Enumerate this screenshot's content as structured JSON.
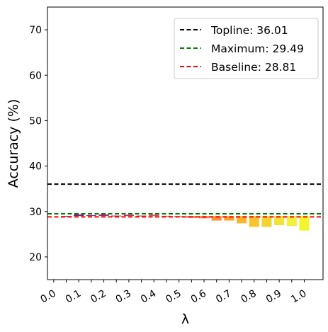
{
  "chart_data": {
    "type": "bar",
    "title": "",
    "xlabel": "λ",
    "ylabel": "Accuracy (%)",
    "xlim": [
      -0.025,
      1.075
    ],
    "ylim": [
      15,
      75
    ],
    "yticks": [
      20,
      30,
      40,
      50,
      60,
      70
    ],
    "xtick_labels": [
      "0.0",
      "0.1",
      "0.2",
      "0.3",
      "0.4",
      "0.5",
      "0.6",
      "0.7",
      "0.8",
      "0.9",
      "1.0"
    ],
    "bar_base": 29.0,
    "x": [
      0.05,
      0.1,
      0.15,
      0.2,
      0.25,
      0.3,
      0.35,
      0.4,
      0.45,
      0.5,
      0.55,
      0.6,
      0.65,
      0.7,
      0.75,
      0.8,
      0.85,
      0.9,
      0.95,
      1.0
    ],
    "values": [
      28.95,
      29.35,
      29.2,
      29.35,
      29.1,
      29.3,
      29.1,
      29.3,
      29.05,
      28.95,
      28.6,
      28.5,
      28.0,
      28.0,
      27.4,
      26.6,
      26.6,
      27.0,
      26.8,
      25.8
    ],
    "bar_colors": [
      "#6a1f7a",
      "#7d1f7f",
      "#8f2281",
      "#a1267f",
      "#b22b7b",
      "#c23075",
      "#d1386d",
      "#de4364",
      "#e9505a",
      "#f05f50",
      "#f66f46",
      "#f9803d",
      "#fb9235",
      "#fca32f",
      "#fbb42c",
      "#f8c52d",
      "#f4d431",
      "#f2e33a",
      "#f3ef3e",
      "#f4f52f"
    ],
    "reference_lines": [
      {
        "name": "Topline: 36.01",
        "value": 36.01,
        "color": "#000000"
      },
      {
        "name": "Maximum: 29.49",
        "value": 29.49,
        "color": "#008000"
      },
      {
        "name": "Baseline: 28.81",
        "value": 28.81,
        "color": "#ff0000"
      }
    ],
    "legend_position": "top-right",
    "grid": false
  }
}
